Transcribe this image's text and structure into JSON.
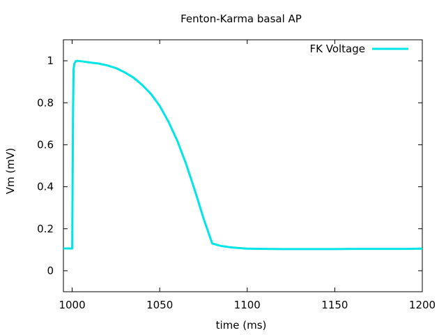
{
  "chart_data": {
    "type": "line",
    "title": "Fenton-Karma basal AP",
    "xlabel": "time (ms)",
    "ylabel": "Vm (mV)",
    "xlim": [
      995,
      1200
    ],
    "ylim": [
      -0.1,
      1.1
    ],
    "xticks": [
      1000,
      1050,
      1100,
      1150,
      1200
    ],
    "yticks": [
      0,
      0.2,
      0.4,
      0.6,
      0.8,
      1
    ],
    "ytick_labels": [
      "0",
      "0.2",
      "0.4",
      "0.6",
      "0.8",
      "1"
    ],
    "grid": false,
    "legend_position": "top-right",
    "series": [
      {
        "name": "FK Voltage",
        "color": "#00e5e5",
        "x": [
          995,
          1000,
          1000.5,
          1000.8,
          1001.2,
          1002,
          1003,
          1005,
          1010,
          1015,
          1020,
          1025,
          1030,
          1035,
          1040,
          1045,
          1050,
          1055,
          1060,
          1065,
          1070,
          1075,
          1080,
          1082,
          1085,
          1090,
          1095,
          1100,
          1110,
          1120,
          1130,
          1140,
          1150,
          1160,
          1170,
          1180,
          1190,
          1200
        ],
        "y": [
          0.106,
          0.106,
          0.76,
          0.96,
          0.985,
          0.998,
          1.0,
          0.998,
          0.992,
          0.987,
          0.978,
          0.965,
          0.945,
          0.92,
          0.885,
          0.842,
          0.785,
          0.71,
          0.62,
          0.51,
          0.385,
          0.25,
          0.13,
          0.125,
          0.118,
          0.112,
          0.108,
          0.105,
          0.104,
          0.103,
          0.103,
          0.103,
          0.103,
          0.104,
          0.104,
          0.104,
          0.104,
          0.105
        ]
      }
    ]
  }
}
